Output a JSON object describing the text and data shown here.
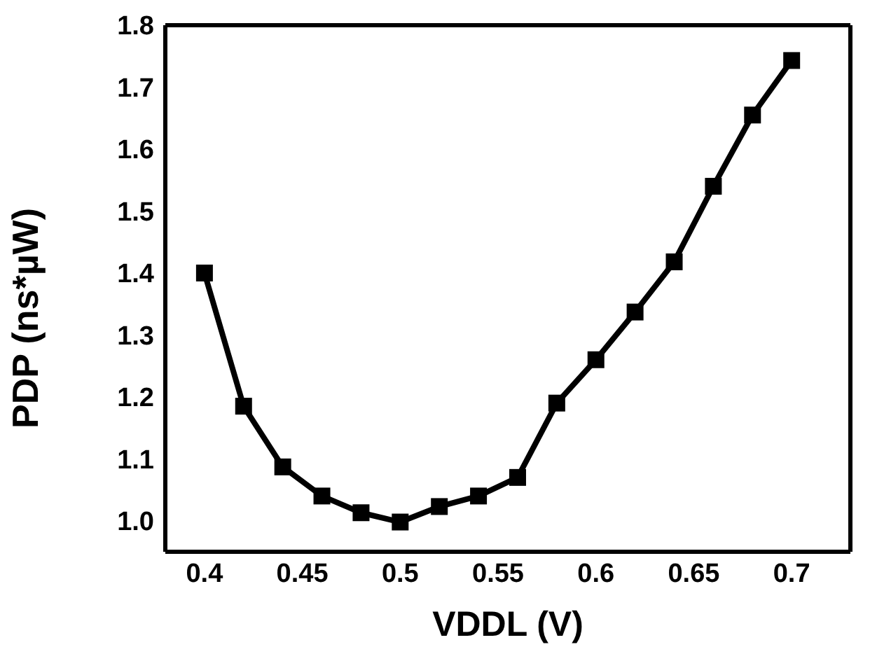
{
  "chart_data": {
    "type": "line",
    "xlabel": "VDDL (V)",
    "ylabel": "PDP (ns*µW)",
    "x": [
      0.4,
      0.42,
      0.44,
      0.46,
      0.48,
      0.5,
      0.52,
      0.54,
      0.56,
      0.58,
      0.6,
      0.62,
      0.64,
      0.66,
      0.68,
      0.7
    ],
    "series": [
      {
        "color": "#000000",
        "values": [
          1.4,
          1.185,
          1.087,
          1.04,
          1.013,
          0.998,
          1.023,
          1.04,
          1.07,
          1.19,
          1.26,
          1.337,
          1.418,
          1.54,
          1.655,
          1.743
        ]
      }
    ],
    "xlim": [
      0.38,
      0.73
    ],
    "xticks": [
      {
        "value": 0.4,
        "label": "0.4"
      },
      {
        "value": 0.45,
        "label": "0.45"
      },
      {
        "value": 0.5,
        "label": "0.5"
      },
      {
        "value": 0.55,
        "label": "0.55"
      },
      {
        "value": 0.6,
        "label": "0.6"
      },
      {
        "value": 0.65,
        "label": "0.65"
      },
      {
        "value": 0.7,
        "label": "0.7"
      }
    ],
    "ylim": [
      0.95,
      1.8
    ],
    "yticks": [
      {
        "value": 1,
        "label": "1.0"
      },
      {
        "value": 1.1,
        "label": "1.1"
      },
      {
        "value": 1.2,
        "label": "1.2"
      },
      {
        "value": 1.3,
        "label": "1.3"
      },
      {
        "value": 1.4,
        "label": "1.4"
      },
      {
        "value": 1.5,
        "label": "1.5"
      },
      {
        "value": 1.6,
        "label": "1.6"
      },
      {
        "value": 1.7,
        "label": "1.7"
      },
      {
        "value": 1.8,
        "label": "1.8"
      }
    ],
    "marker": "square",
    "line_style": "solid"
  }
}
